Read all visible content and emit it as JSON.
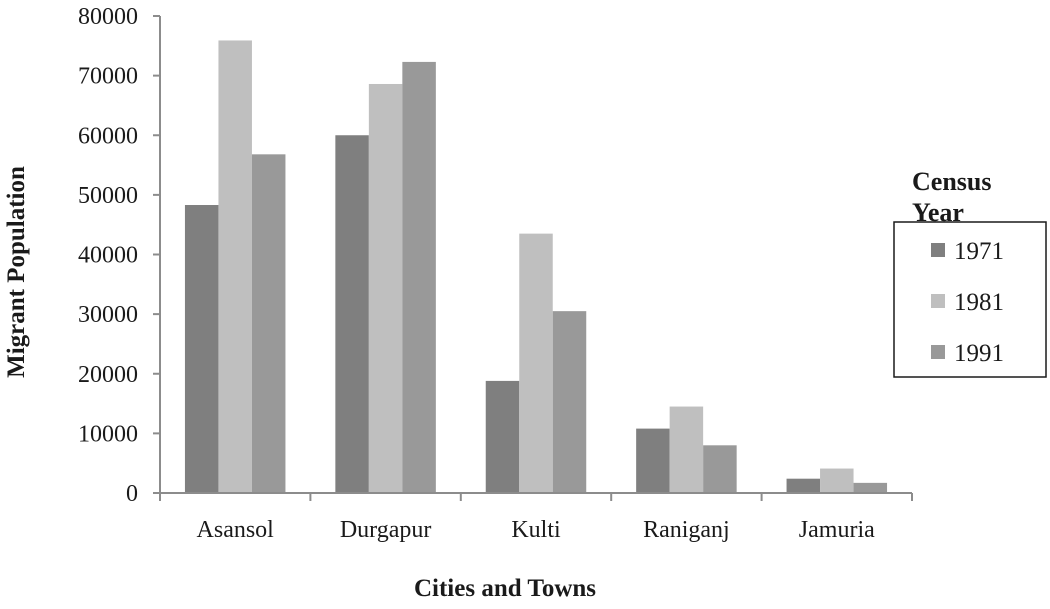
{
  "chart_data": {
    "type": "bar",
    "xlabel": "Cities and Towns",
    "ylabel": "Migrant Population",
    "categories": [
      "Asansol",
      "Durgapur",
      "Kulti",
      "Raniganj",
      "Jamuria"
    ],
    "series": [
      {
        "name": "1971",
        "values": [
          48300,
          60000,
          18800,
          10800,
          2400
        ],
        "color": "#7f7f7f"
      },
      {
        "name": "1981",
        "values": [
          75900,
          68600,
          43500,
          14500,
          4100
        ],
        "color": "#bfbfbf"
      },
      {
        "name": "1991",
        "values": [
          56800,
          72300,
          30500,
          8000,
          1700
        ],
        "color": "#999999"
      }
    ],
    "ylim": [
      0,
      80000
    ],
    "yticks": [
      0,
      10000,
      20000,
      30000,
      40000,
      50000,
      60000,
      70000,
      80000
    ],
    "legend": {
      "title_lines": [
        "Census",
        "Year"
      ],
      "position": "right"
    },
    "grid": false
  }
}
